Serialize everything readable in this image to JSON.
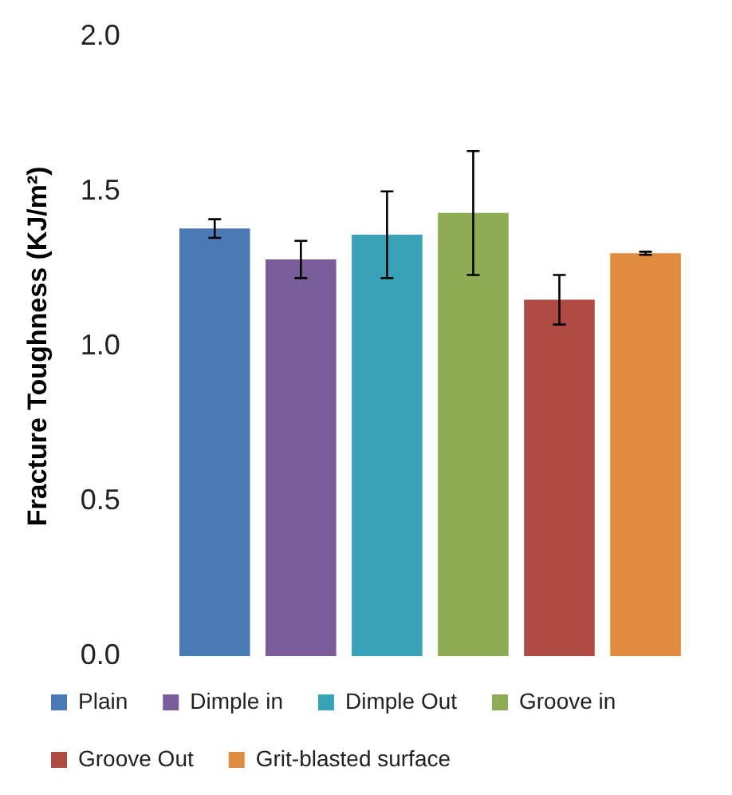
{
  "chart_data": {
    "type": "bar",
    "ylabel": "Fracture Toughness (KJ/m²)",
    "categories": [
      null
    ],
    "series": [
      {
        "name": "Plain",
        "color": "#4a7ab5",
        "values": [
          1.38
        ],
        "errors": [
          0.03
        ]
      },
      {
        "name": "Dimple in",
        "color": "#7b5c9a",
        "values": [
          1.28
        ],
        "errors": [
          0.06
        ]
      },
      {
        "name": "Dimple Out",
        "color": "#3aa2b8",
        "values": [
          1.36
        ],
        "errors": [
          0.14
        ]
      },
      {
        "name": "Groove in",
        "color": "#8eac54",
        "values": [
          1.43
        ],
        "errors": [
          0.2
        ]
      },
      {
        "name": "Groove Out",
        "color": "#b04a45",
        "values": [
          1.15
        ],
        "errors": [
          0.08
        ]
      },
      {
        "name": "Grit-blasted surface",
        "color": "#e08b3e",
        "values": [
          1.3
        ],
        "errors": [
          0.005
        ]
      }
    ],
    "ylim": [
      0,
      2
    ],
    "yticks": [
      {
        "value": 0,
        "label": "0.0"
      },
      {
        "value": 0.5,
        "label": "0.5"
      },
      {
        "value": 1,
        "label": "1.0"
      },
      {
        "value": 1.5,
        "label": "1.5"
      },
      {
        "value": 2,
        "label": "2.0"
      }
    ],
    "grid": false,
    "legend": "bottom"
  }
}
